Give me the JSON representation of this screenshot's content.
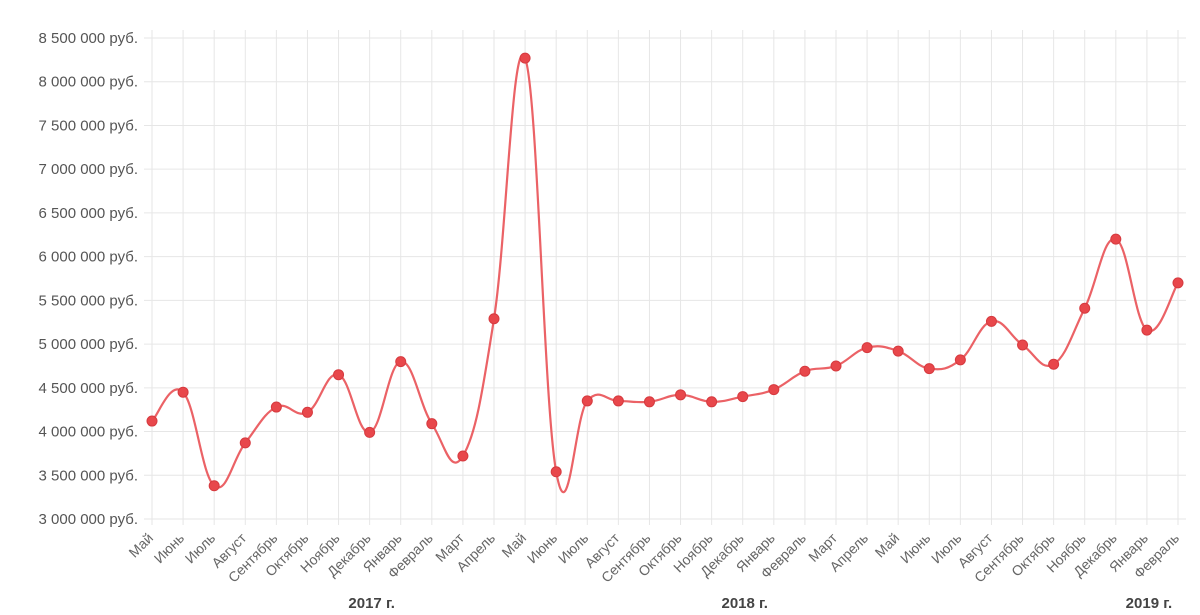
{
  "chart_data": {
    "type": "line",
    "currency_suffix": " руб.",
    "ylim": [
      3000000,
      8500000
    ],
    "y_ticks": [
      "8 500 000 руб.",
      "8 000 000 руб.",
      "7 500 000 руб.",
      "7 000 000 руб.",
      "6 500 000 руб.",
      "6 000 000 руб.",
      "5 500 000 руб.",
      "5 000 000 руб.",
      "4 500 000 руб.",
      "4 000 000 руб.",
      "3 500 000 руб.",
      "3 000 000 руб."
    ],
    "y_tick_values": [
      8500000,
      8000000,
      7500000,
      7000000,
      6500000,
      6000000,
      5500000,
      5000000,
      4500000,
      4000000,
      3500000,
      3000000
    ],
    "categories": [
      "Май",
      "Июнь",
      "Июль",
      "Август",
      "Сентябрь",
      "Октябрь",
      "Ноябрь",
      "Декабрь",
      "Январь",
      "Февраль",
      "Март",
      "Апрель",
      "Май",
      "Июнь",
      "Июль",
      "Август",
      "Сентябрь",
      "Октябрь",
      "Ноябрь",
      "Декабрь",
      "Январь",
      "Февраль",
      "Март",
      "Апрель",
      "Май",
      "Июнь",
      "Июль",
      "Август",
      "Сентябрь",
      "Октябрь",
      "Ноябрь",
      "Декабрь",
      "Январь",
      "Февраль"
    ],
    "values": [
      4120000,
      4450000,
      3380000,
      3870000,
      4280000,
      4220000,
      4650000,
      3990000,
      4800000,
      4090000,
      3720000,
      5290000,
      8270000,
      3540000,
      4350000,
      4350000,
      4340000,
      4420000,
      4340000,
      4400000,
      4480000,
      4690000,
      4750000,
      4960000,
      4920000,
      4720000,
      4820000,
      5260000,
      4990000,
      4770000,
      5410000,
      6200000,
      5160000,
      5700000
    ],
    "year_labels": [
      {
        "label": "2017 г.",
        "category_index": 7
      },
      {
        "label": "2018 г.",
        "category_index": 19
      },
      {
        "label": "2019 г.",
        "category_index": 32
      }
    ],
    "series_color": "#e8474b",
    "grid": true,
    "legend": "none"
  }
}
